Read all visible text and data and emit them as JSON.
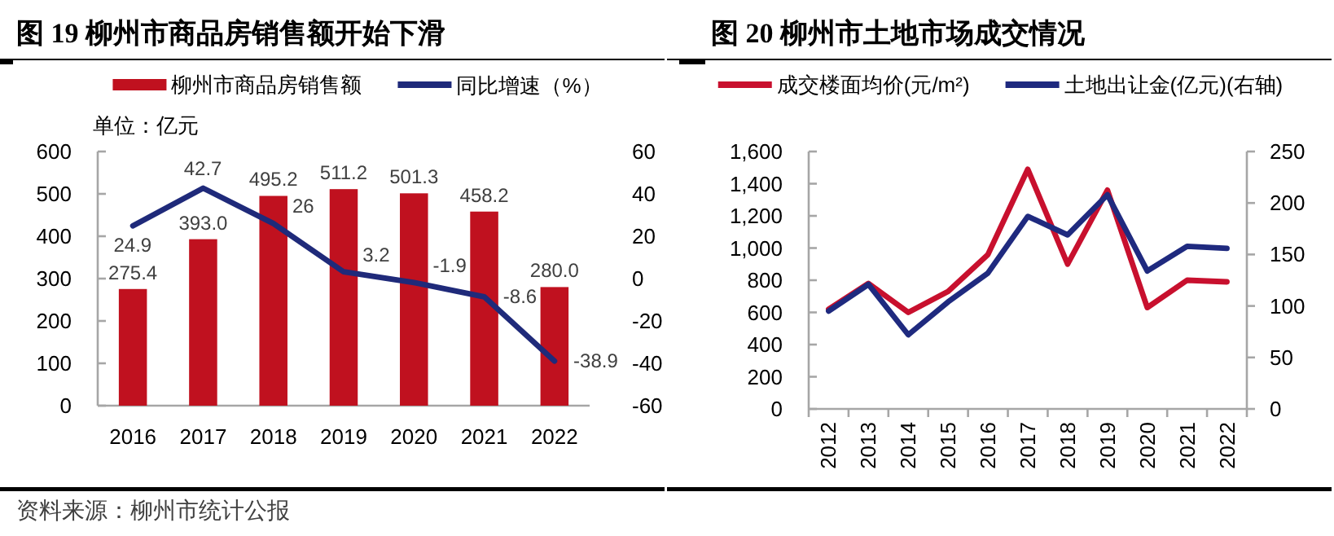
{
  "chart_data": [
    {
      "type": "bar",
      "title": "图 19 柳州市商品房销售额开始下滑",
      "categories": [
        "2016",
        "2017",
        "2018",
        "2019",
        "2020",
        "2021",
        "2022"
      ],
      "series": [
        {
          "name": "柳州市商品房销售额",
          "color": "#C0111F",
          "values": [
            275.4,
            393.0,
            495.2,
            511.2,
            501.3,
            458.2,
            280.0
          ],
          "value_labels": [
            "275.4",
            "393.0",
            "495.2",
            "511.2",
            "501.3",
            "458.2",
            "280.0"
          ]
        },
        {
          "name": "同比增速（%）",
          "type": "line",
          "axis": "y2",
          "color": "#1F2A7A",
          "values": [
            24.9,
            42.7,
            26,
            3.2,
            -1.9,
            -8.6,
            -38.9
          ],
          "value_labels": [
            "24.9",
            "42.7",
            "26",
            "3.2",
            "-1.9",
            "-8.6",
            "-38.9"
          ]
        }
      ],
      "ylim": [
        0,
        600
      ],
      "yticks": [
        0,
        100,
        200,
        300,
        400,
        500,
        600
      ],
      "y2lim": [
        -60,
        60
      ],
      "y2ticks": [
        -60,
        -40,
        -20,
        0,
        20,
        40,
        60
      ],
      "legend": "top",
      "annotations": [
        "单位：亿元",
        "资料来源：柳州市统计公报"
      ]
    },
    {
      "type": "line",
      "title": "图 20 柳州市土地市场成交情况",
      "categories": [
        "2012",
        "2013",
        "2014",
        "2015",
        "2016",
        "2017",
        "2018",
        "2019",
        "2020",
        "2021",
        "2022"
      ],
      "series": [
        {
          "name": "成交楼面均价(元/m²)",
          "color": "#C8102E",
          "values": [
            620,
            780,
            600,
            730,
            960,
            1490,
            900,
            1360,
            630,
            800,
            790
          ]
        },
        {
          "name": "土地出让金(亿元)(右轴)",
          "axis": "y2",
          "color": "#1F2A7F",
          "values": [
            95,
            121,
            72,
            104,
            132,
            187,
            169,
            208,
            134,
            158,
            156
          ]
        }
      ],
      "ylim": [
        0,
        1600
      ],
      "yticks": [
        0,
        200,
        400,
        600,
        800,
        {
          "value": 1000,
          "label": "1,000"
        },
        {
          "value": 1200,
          "label": "1,200"
        },
        {
          "value": 1400,
          "label": "1,400"
        },
        {
          "value": 1600,
          "label": "1,600"
        }
      ],
      "y2lim": [
        0,
        250
      ],
      "y2ticks": [
        0,
        50,
        100,
        150,
        200,
        250
      ],
      "legend": "top"
    }
  ]
}
